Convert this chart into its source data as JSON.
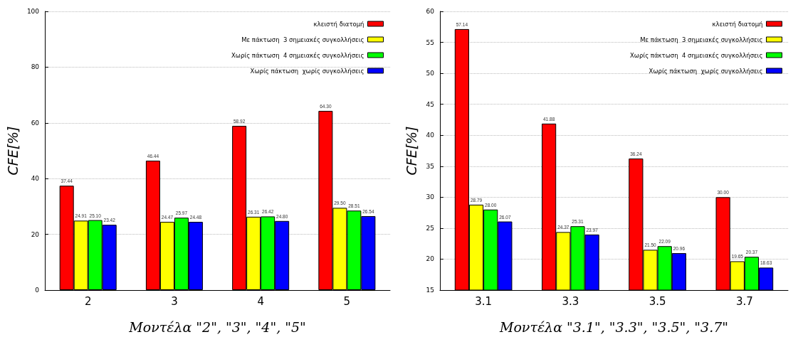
{
  "chart_data": [
    {
      "type": "bar",
      "xlabel": "Μοντέλα \"2\", \"3\", \"4\", \"5\"",
      "ylabel": "CFE[%]",
      "categories": [
        "2",
        "3",
        "4",
        "5"
      ],
      "series": [
        {
          "name": "κλειστή διατομή",
          "color": "#ff0000",
          "values": [
            37.44,
            46.44,
            58.92,
            64.3
          ],
          "value_labels": [
            "37.44",
            "46.44",
            "58.92",
            "64.30"
          ]
        },
        {
          "name": "Με πάκτωση  3 σημειακές συγκολλήσεις",
          "color": "#ffff00",
          "values": [
            24.91,
            24.47,
            26.31,
            29.5
          ],
          "value_labels": [
            "24.91",
            "24.47",
            "26.31",
            "29.50"
          ]
        },
        {
          "name": "Χωρίς πάκτωση  4 σημειακές συγκολλήσεις",
          "color": "#00ff00",
          "values": [
            25.1,
            25.97,
            26.42,
            28.51
          ],
          "value_labels": [
            "25.10",
            "25.97",
            "26.42",
            "28.51"
          ]
        },
        {
          "name": "Χωρίς πάκτωση  χωρίς συγκολλήσεις",
          "color": "#0000ff",
          "values": [
            23.42,
            24.48,
            24.8,
            26.54
          ],
          "value_labels": [
            "23.42",
            "24.48",
            "24.80",
            "26.54"
          ]
        }
      ],
      "ylim": [
        0,
        100
      ],
      "yticks": [
        0,
        20,
        40,
        60,
        80,
        100
      ],
      "grid": "y",
      "legend": "top right"
    },
    {
      "type": "bar",
      "xlabel": "Μοντέλα \"3.1\", \"3.3\", \"3.5\", \"3.7\"",
      "ylabel": "CFE[%]",
      "categories": [
        "3.1",
        "3.3",
        "3.5",
        "3.7"
      ],
      "series": [
        {
          "name": "κλειστή διατομή",
          "color": "#ff0000",
          "values": [
            57.14,
            41.88,
            36.24,
            30.0
          ],
          "value_labels": [
            "57.14",
            "41.88",
            "36.24",
            "30.00"
          ]
        },
        {
          "name": "Με πάκτωση  3 σημειακές συγκολλήσεις",
          "color": "#ffff00",
          "values": [
            28.79,
            24.37,
            21.5,
            19.65
          ],
          "value_labels": [
            "28.79",
            "24.37",
            "21.50",
            "19.65"
          ]
        },
        {
          "name": "Χωρίς πάκτωση  4 σημειακές συγκολλήσεις",
          "color": "#00ff00",
          "values": [
            28.0,
            25.31,
            22.09,
            20.37
          ],
          "value_labels": [
            "28.00",
            "25.31",
            "22.09",
            "20.37"
          ]
        },
        {
          "name": "Χωρίς πάκτωση  χωρίς συγκολλήσεις",
          "color": "#0000ff",
          "values": [
            26.07,
            23.97,
            20.96,
            18.63
          ],
          "value_labels": [
            "26.07",
            "23.97",
            "20.96",
            "18.63"
          ]
        }
      ],
      "ylim": [
        15,
        60
      ],
      "yticks": [
        15,
        20,
        25,
        30,
        35,
        40,
        45,
        50,
        55,
        60
      ],
      "grid": "y",
      "legend": "top right"
    }
  ]
}
